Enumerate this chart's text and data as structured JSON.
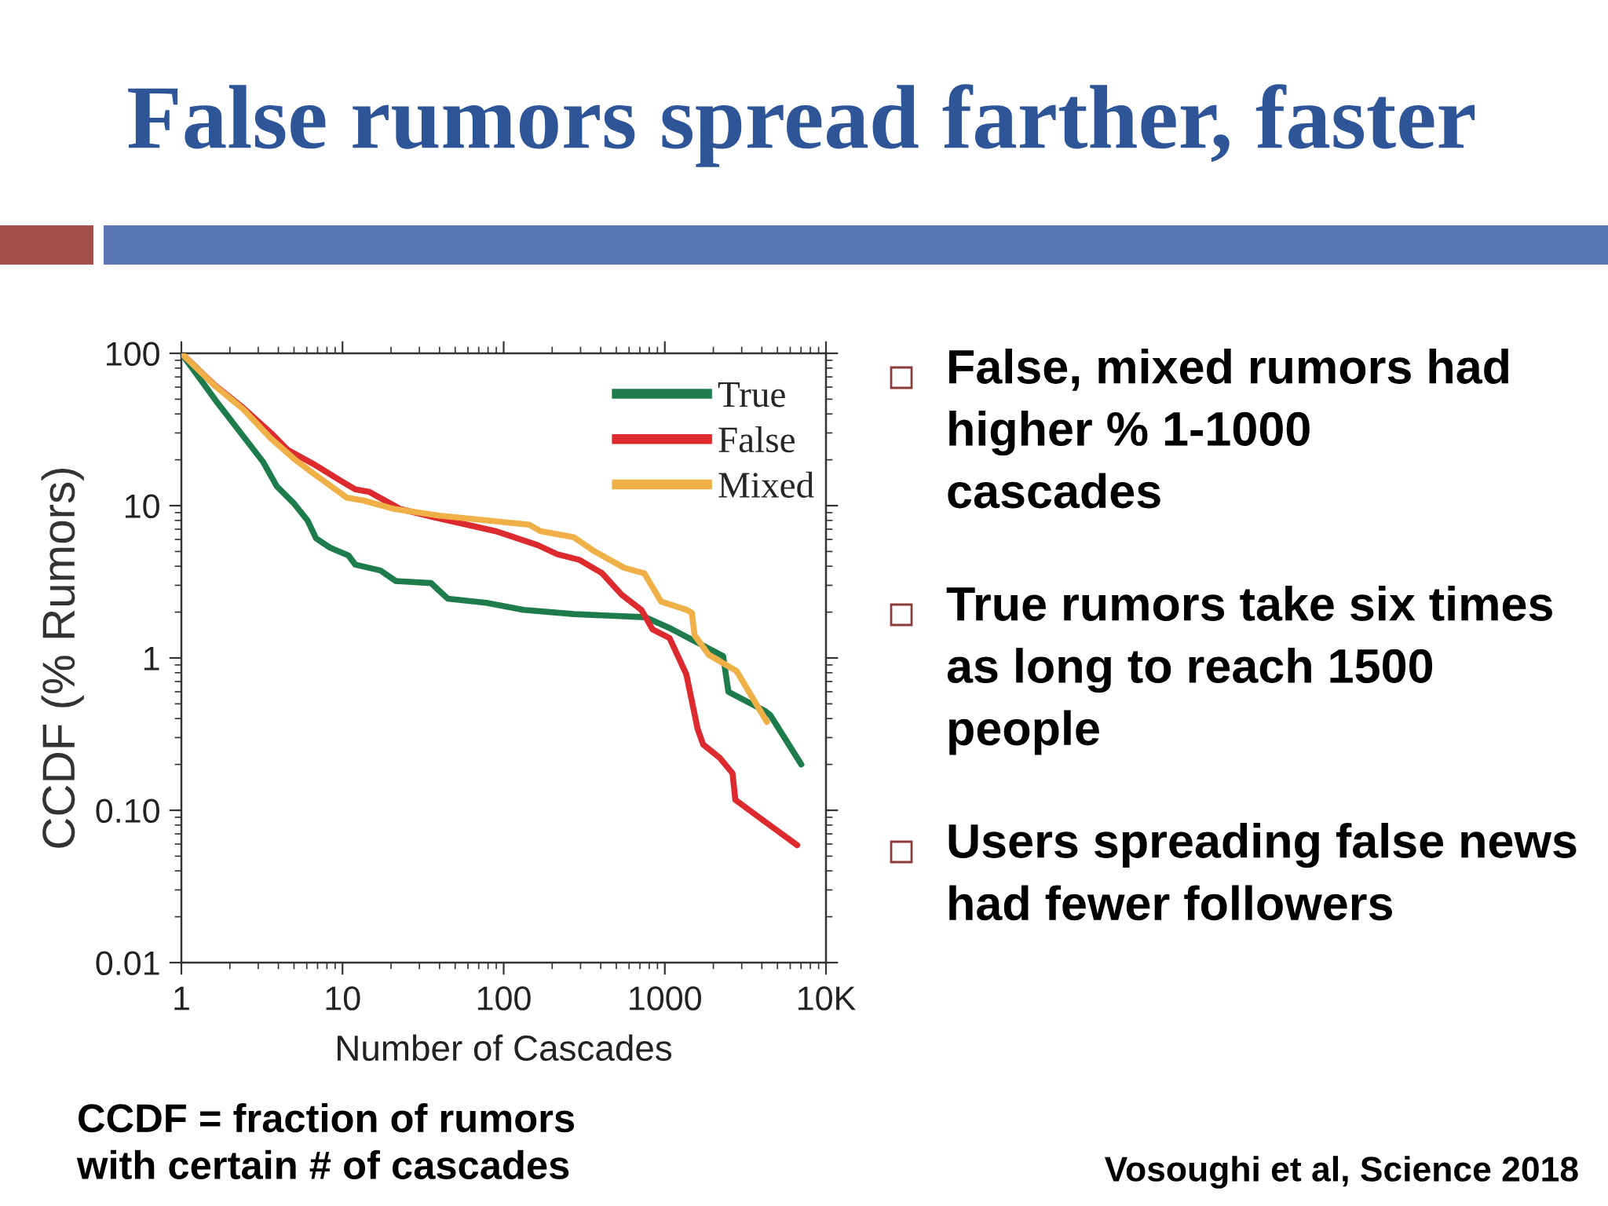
{
  "chart_data": {
    "type": "line",
    "title": "False rumors spread farther, faster",
    "xlabel": "Number of Cascades",
    "ylabel": "CCDF (% Rumors)",
    "log": "xy",
    "xlim": [
      1,
      10000
    ],
    "ylim": [
      0.01,
      100
    ],
    "xticks": [
      1,
      10,
      100,
      1000,
      {
        "value": 10000,
        "label": "10K"
      }
    ],
    "yticks": [
      0.01,
      {
        "value": 0.1,
        "label": "0.10"
      },
      1,
      10,
      100
    ],
    "legend": "top right",
    "series": [
      {
        "name": "True",
        "color": "#1e7b4c",
        "x": [
          1,
          1.62,
          2.42,
          3.2,
          3.91,
          4.97,
          6.07,
          6.85,
          8.36,
          10.9,
          12,
          17.2,
          21.4,
          35.4,
          45,
          78,
          133,
          273,
          760,
          1100,
          2300,
          2480,
          4170,
          4520,
          7030
        ],
        "values": [
          100,
          49.6,
          28.6,
          19.5,
          13.4,
          10.4,
          8.0,
          6.1,
          5.3,
          4.7,
          4.1,
          3.75,
          3.2,
          3.1,
          2.45,
          2.3,
          2.07,
          1.94,
          1.85,
          1.55,
          1.03,
          0.6,
          0.45,
          0.42,
          0.2
        ]
      },
      {
        "name": "False",
        "color": "#dc2a2f",
        "x": [
          1,
          1.62,
          2.42,
          3.61,
          4.58,
          6.58,
          9.82,
          12,
          14.7,
          22.8,
          36.9,
          89,
          163,
          215,
          296,
          408,
          540,
          715,
          839,
          1070,
          1360,
          1600,
          1730,
          2200,
          2630,
          2740,
          4010,
          6620
        ],
        "values": [
          100,
          61.5,
          43.8,
          29.9,
          23.2,
          18.8,
          14.5,
          12.8,
          12.3,
          9.5,
          8.4,
          6.8,
          5.5,
          4.8,
          4.4,
          3.6,
          2.6,
          2.07,
          1.54,
          1.35,
          0.78,
          0.34,
          0.27,
          0.22,
          0.175,
          0.117,
          0.087,
          0.059
        ]
      },
      {
        "name": "Mixed",
        "color": "#f0b048",
        "x": [
          1,
          1.62,
          2.42,
          3.61,
          4.97,
          6.85,
          10.6,
          13.5,
          21,
          40,
          144,
          169,
          273,
          362,
          562,
          745,
          947,
          1360,
          1470,
          1530,
          1870,
          2790,
          4300
        ],
        "values": [
          100,
          61,
          43,
          27.5,
          20.4,
          15.8,
          11.3,
          10.8,
          9.5,
          8.6,
          7.5,
          6.8,
          6.2,
          5.05,
          3.9,
          3.6,
          2.35,
          2.07,
          1.98,
          1.41,
          1.05,
          0.82,
          0.38
        ]
      }
    ],
    "annotations": [
      "False, mixed rumors had\nhigher % 1-1000\ncascades",
      "True rumors take six times\nas long to reach 1500\npeople",
      "Users spreading false news\nhad fewer followers",
      "CCDF = fraction of rumors\nwith certain # of cascades",
      "Vosoughi et al, Science 2018"
    ]
  }
}
